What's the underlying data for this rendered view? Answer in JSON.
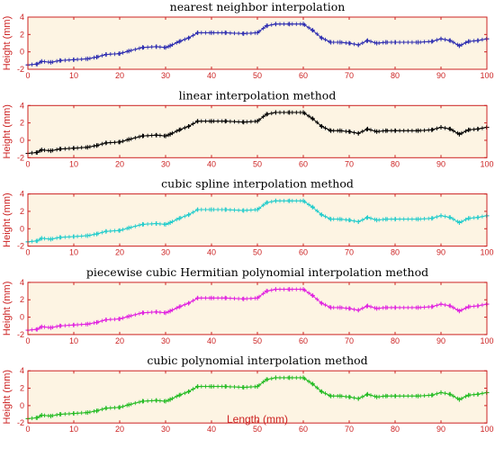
{
  "figure": {
    "xlabel": "Length (mm)"
  },
  "colors": {
    "axis": "#cc2222",
    "plot_background": "#fdf4e3"
  },
  "chart_data": [
    {
      "type": "line",
      "title": "nearest neighbor interpolation",
      "ylabel": "Height (mm)",
      "xlim": [
        0,
        100
      ],
      "ylim": [
        -2,
        4
      ],
      "xticks": [
        0,
        10,
        20,
        30,
        40,
        50,
        60,
        70,
        80,
        90,
        100
      ],
      "yticks": [
        -2,
        0,
        2,
        4
      ],
      "grid": false,
      "color": "#2b2bb0",
      "marker": "+",
      "series": [
        {
          "x": [
            0,
            2,
            3,
            5,
            7,
            10,
            13,
            15,
            17,
            20,
            22,
            25,
            28,
            30,
            31,
            33,
            35,
            37,
            40,
            43,
            47,
            50,
            52,
            54,
            57,
            60,
            62,
            64,
            66,
            68,
            70,
            72,
            74,
            76,
            78,
            80,
            85,
            88,
            90,
            92,
            94,
            96,
            98,
            100
          ],
          "y": [
            -1.5,
            -1.4,
            -1.1,
            -1.2,
            -1.0,
            -0.9,
            -0.8,
            -0.6,
            -0.3,
            -0.2,
            0.1,
            0.5,
            0.6,
            0.5,
            0.7,
            1.2,
            1.6,
            2.2,
            2.2,
            2.2,
            2.1,
            2.2,
            3.0,
            3.2,
            3.2,
            3.2,
            2.5,
            1.6,
            1.1,
            1.1,
            1.0,
            0.8,
            1.3,
            1.0,
            1.1,
            1.1,
            1.1,
            1.2,
            1.5,
            1.3,
            0.7,
            1.2,
            1.3,
            1.5
          ]
        }
      ]
    },
    {
      "type": "line",
      "title": "linear interpolation method",
      "ylabel": "Height (mm)",
      "xlim": [
        0,
        100
      ],
      "ylim": [
        -2,
        4
      ],
      "xticks": [
        0,
        10,
        20,
        30,
        40,
        50,
        60,
        70,
        80,
        90,
        100
      ],
      "yticks": [
        -2,
        0,
        2,
        4
      ],
      "grid": false,
      "color": "#000000",
      "marker": "+",
      "series": [
        {
          "x": [
            0,
            2,
            3,
            5,
            7,
            10,
            13,
            15,
            17,
            20,
            22,
            25,
            28,
            30,
            31,
            33,
            35,
            37,
            40,
            43,
            47,
            50,
            52,
            54,
            57,
            60,
            62,
            64,
            66,
            68,
            70,
            72,
            74,
            76,
            78,
            80,
            85,
            88,
            90,
            92,
            94,
            96,
            98,
            100
          ],
          "y": [
            -1.5,
            -1.4,
            -1.1,
            -1.2,
            -1.0,
            -0.9,
            -0.8,
            -0.6,
            -0.3,
            -0.2,
            0.1,
            0.5,
            0.6,
            0.5,
            0.7,
            1.2,
            1.6,
            2.2,
            2.2,
            2.2,
            2.1,
            2.2,
            3.0,
            3.2,
            3.2,
            3.2,
            2.5,
            1.6,
            1.1,
            1.1,
            1.0,
            0.8,
            1.3,
            1.0,
            1.1,
            1.1,
            1.1,
            1.2,
            1.5,
            1.3,
            0.7,
            1.2,
            1.3,
            1.5
          ]
        }
      ]
    },
    {
      "type": "line",
      "title": "cubic spline interpolation method",
      "ylabel": "Height (mm)",
      "xlim": [
        0,
        100
      ],
      "ylim": [
        -2,
        4
      ],
      "xticks": [
        0,
        10,
        20,
        30,
        40,
        50,
        60,
        70,
        80,
        90,
        100
      ],
      "yticks": [
        -2,
        0,
        2,
        4
      ],
      "grid": false,
      "color": "#22cccc",
      "marker": "+",
      "series": [
        {
          "x": [
            0,
            2,
            3,
            5,
            7,
            10,
            13,
            15,
            17,
            20,
            22,
            25,
            28,
            30,
            31,
            33,
            35,
            37,
            40,
            43,
            47,
            50,
            52,
            54,
            57,
            60,
            62,
            64,
            66,
            68,
            70,
            72,
            74,
            76,
            78,
            80,
            85,
            88,
            90,
            92,
            94,
            96,
            98,
            100
          ],
          "y": [
            -1.5,
            -1.4,
            -1.1,
            -1.2,
            -1.0,
            -0.9,
            -0.8,
            -0.6,
            -0.3,
            -0.2,
            0.1,
            0.5,
            0.6,
            0.5,
            0.7,
            1.2,
            1.6,
            2.2,
            2.2,
            2.2,
            2.1,
            2.2,
            3.0,
            3.2,
            3.2,
            3.2,
            2.5,
            1.6,
            1.1,
            1.1,
            1.0,
            0.8,
            1.3,
            1.0,
            1.1,
            1.1,
            1.1,
            1.2,
            1.5,
            1.3,
            0.7,
            1.2,
            1.3,
            1.5
          ]
        }
      ]
    },
    {
      "type": "line",
      "title": "piecewise cubic Hermitian polynomial interpolation method",
      "ylabel": "Height (mm)",
      "xlim": [
        0,
        100
      ],
      "ylim": [
        -2,
        4
      ],
      "xticks": [
        0,
        10,
        20,
        30,
        40,
        50,
        60,
        70,
        80,
        90,
        100
      ],
      "yticks": [
        -2,
        0,
        2,
        4
      ],
      "grid": false,
      "color": "#e020e0",
      "marker": "+",
      "series": [
        {
          "x": [
            0,
            2,
            3,
            5,
            7,
            10,
            13,
            15,
            17,
            20,
            22,
            25,
            28,
            30,
            31,
            33,
            35,
            37,
            40,
            43,
            47,
            50,
            52,
            54,
            57,
            60,
            62,
            64,
            66,
            68,
            70,
            72,
            74,
            76,
            78,
            80,
            85,
            88,
            90,
            92,
            94,
            96,
            98,
            100
          ],
          "y": [
            -1.5,
            -1.4,
            -1.1,
            -1.2,
            -1.0,
            -0.9,
            -0.8,
            -0.6,
            -0.3,
            -0.2,
            0.1,
            0.5,
            0.6,
            0.5,
            0.7,
            1.2,
            1.6,
            2.2,
            2.2,
            2.2,
            2.1,
            2.2,
            3.0,
            3.2,
            3.2,
            3.2,
            2.5,
            1.6,
            1.1,
            1.1,
            1.0,
            0.8,
            1.3,
            1.0,
            1.1,
            1.1,
            1.1,
            1.2,
            1.5,
            1.3,
            0.7,
            1.2,
            1.3,
            1.5
          ]
        }
      ]
    },
    {
      "type": "line",
      "title": "cubic polynomial interpolation method",
      "ylabel": "Height (mm)",
      "xlim": [
        0,
        100
      ],
      "ylim": [
        -2,
        4
      ],
      "xticks": [
        0,
        10,
        20,
        30,
        40,
        50,
        60,
        70,
        80,
        90,
        100
      ],
      "yticks": [
        -2,
        0,
        2,
        4
      ],
      "grid": false,
      "color": "#22bb22",
      "marker": "+",
      "series": [
        {
          "x": [
            0,
            2,
            3,
            5,
            7,
            10,
            13,
            15,
            17,
            20,
            22,
            25,
            28,
            30,
            31,
            33,
            35,
            37,
            40,
            43,
            47,
            50,
            52,
            54,
            57,
            60,
            62,
            64,
            66,
            68,
            70,
            72,
            74,
            76,
            78,
            80,
            85,
            88,
            90,
            92,
            94,
            96,
            98,
            100
          ],
          "y": [
            -1.5,
            -1.4,
            -1.1,
            -1.2,
            -1.0,
            -0.9,
            -0.8,
            -0.6,
            -0.3,
            -0.2,
            0.1,
            0.5,
            0.6,
            0.5,
            0.7,
            1.2,
            1.6,
            2.2,
            2.2,
            2.2,
            2.1,
            2.2,
            3.0,
            3.2,
            3.2,
            3.2,
            2.5,
            1.6,
            1.1,
            1.1,
            1.0,
            0.8,
            1.3,
            1.0,
            1.1,
            1.1,
            1.1,
            1.2,
            1.5,
            1.3,
            0.7,
            1.2,
            1.3,
            1.5
          ]
        }
      ]
    }
  ]
}
